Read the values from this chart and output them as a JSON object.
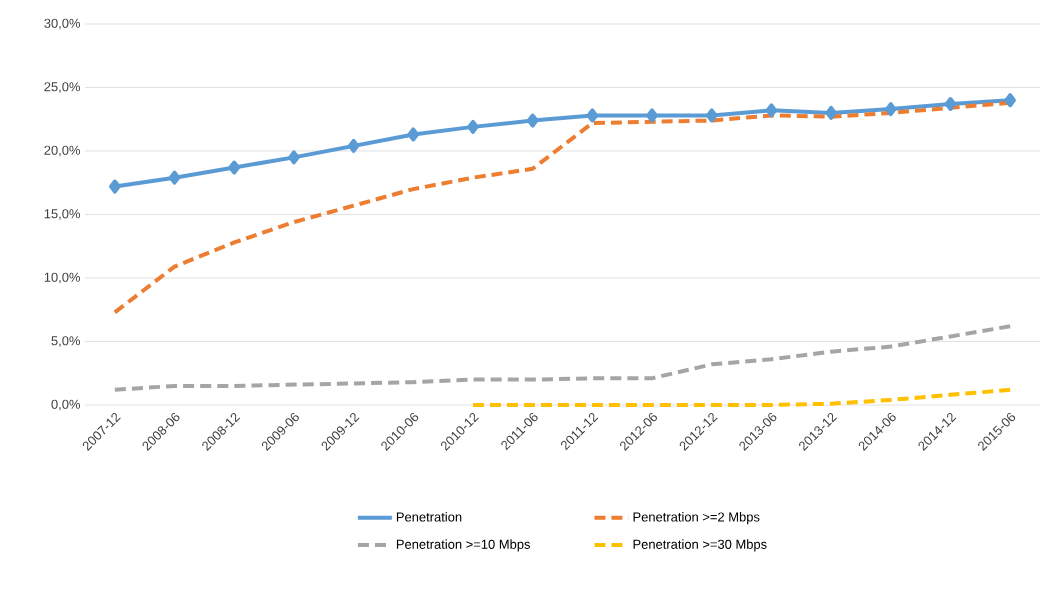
{
  "chart_data": {
    "type": "line",
    "categories": [
      "2007-12",
      "2008-06",
      "2008-12",
      "2009-06",
      "2009-12",
      "2010-06",
      "2010-12",
      "2011-06",
      "2011-12",
      "2012-06",
      "2012-12",
      "2013-06",
      "2013-12",
      "2014-06",
      "2014-12",
      "2015-06"
    ],
    "series": [
      {
        "name": "Penetration",
        "color": "#5b9bd5",
        "marker": "diamond",
        "line_style": "solid",
        "values": [
          17.2,
          17.9,
          18.7,
          19.5,
          20.4,
          21.3,
          21.9,
          22.4,
          22.8,
          22.8,
          22.8,
          23.2,
          23.0,
          23.3,
          23.7,
          24.0
        ]
      },
      {
        "name": "Penetration >=2 Mbps",
        "color": "#ed7d31",
        "marker": "none",
        "line_style": "dashed",
        "values": [
          7.3,
          10.9,
          12.8,
          14.4,
          15.7,
          17.0,
          17.9,
          18.6,
          22.2,
          22.3,
          22.4,
          22.8,
          22.7,
          23.0,
          23.4,
          23.8
        ]
      },
      {
        "name": "Penetration >=10 Mbps",
        "color": "#a5a5a5",
        "marker": "none",
        "line_style": "dashed",
        "values": [
          1.2,
          1.5,
          1.5,
          1.6,
          1.7,
          1.8,
          2.0,
          2.0,
          2.1,
          2.1,
          3.2,
          3.6,
          4.2,
          4.6,
          5.4,
          6.2
        ]
      },
      {
        "name": "Penetration >=30 Mbps",
        "color": "#ffc000",
        "marker": "none",
        "line_style": "dashed",
        "values": [
          null,
          null,
          null,
          null,
          null,
          null,
          0,
          0,
          0,
          0,
          0,
          0,
          0.1,
          0.4,
          0.8,
          1.2
        ]
      }
    ],
    "ylim": [
      0,
      30
    ],
    "yticks": [
      {
        "value": 0,
        "label": "0,0%"
      },
      {
        "value": 5,
        "label": "5,0%"
      },
      {
        "value": 10,
        "label": "10,0%"
      },
      {
        "value": 15,
        "label": "15,0%"
      },
      {
        "value": 20,
        "label": "20,0%"
      },
      {
        "value": 25,
        "label": "25,0%"
      },
      {
        "value": 30,
        "label": "30,0%"
      }
    ],
    "grid": "y",
    "legend": "bottom"
  }
}
